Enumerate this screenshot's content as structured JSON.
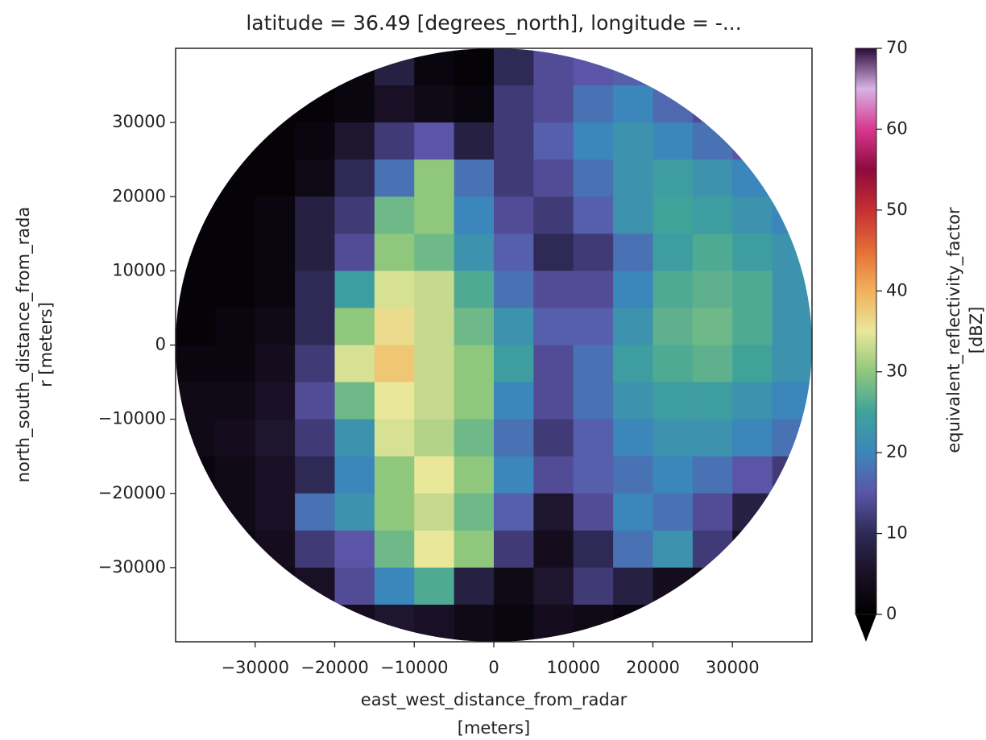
{
  "chart_data": {
    "type": "heatmap",
    "title": "latitude = 36.49 [degrees_north], longitude = -...",
    "xlabel": [
      "east_west_distance_from_radar",
      "[meters]"
    ],
    "ylabel": [
      "north_south_distance_from_rada",
      "r [meters]"
    ],
    "colorbar_label": [
      "equivalent_reflectivity_factor",
      "[dBZ]"
    ],
    "xlim": [
      -40000,
      40000
    ],
    "ylim": [
      -40000,
      40000
    ],
    "xticks": [
      {
        "value": -30000,
        "label": "−30000"
      },
      {
        "value": -20000,
        "label": "−20000"
      },
      {
        "value": -10000,
        "label": "−10000"
      },
      0,
      10000,
      20000,
      30000
    ],
    "yticks": [
      {
        "value": -30000,
        "label": "−30000"
      },
      {
        "value": -20000,
        "label": "−20000"
      },
      {
        "value": -10000,
        "label": "−10000"
      },
      0,
      10000,
      20000,
      30000
    ],
    "x_edges": [
      -40000,
      -35000,
      -30000,
      -25000,
      -20000,
      -15000,
      -10000,
      -5000,
      0,
      5000,
      10000,
      15000,
      20000,
      25000,
      30000,
      35000,
      40000
    ],
    "y_edges": [
      40000,
      35000,
      30000,
      25000,
      20000,
      15000,
      10000,
      5000,
      0,
      -5000,
      -10000,
      -15000,
      -20000,
      -25000,
      -30000,
      -35000,
      -40000
    ],
    "z": [
      [
        null,
        null,
        null,
        null,
        2,
        8,
        2,
        1,
        10,
        14,
        15,
        16,
        null,
        null,
        null,
        null
      ],
      [
        null,
        null,
        1,
        1,
        2,
        5,
        3,
        2,
        12,
        14,
        18,
        20,
        17,
        14,
        null,
        null
      ],
      [
        null,
        1,
        1,
        2,
        6,
        12,
        15,
        8,
        12,
        16,
        20,
        22,
        20,
        18,
        15,
        null
      ],
      [
        null,
        1,
        1,
        3,
        10,
        18,
        30,
        18,
        12,
        14,
        18,
        22,
        24,
        22,
        20,
        null
      ],
      [
        1,
        1,
        2,
        8,
        12,
        28,
        30,
        20,
        14,
        12,
        16,
        22,
        25,
        24,
        22,
        20
      ],
      [
        1,
        1,
        2,
        8,
        14,
        30,
        28,
        22,
        16,
        10,
        12,
        18,
        24,
        26,
        24,
        22
      ],
      [
        1,
        1,
        2,
        10,
        24,
        34,
        33,
        26,
        18,
        14,
        14,
        20,
        26,
        27,
        26,
        22
      ],
      [
        1,
        2,
        3,
        10,
        30,
        36,
        33,
        28,
        22,
        16,
        16,
        22,
        27,
        28,
        26,
        22
      ],
      [
        2,
        2,
        4,
        12,
        34,
        38,
        33,
        30,
        24,
        14,
        18,
        24,
        26,
        27,
        25,
        22
      ],
      [
        3,
        3,
        5,
        14,
        28,
        35,
        33,
        30,
        20,
        14,
        18,
        22,
        24,
        24,
        22,
        20
      ],
      [
        3,
        4,
        6,
        12,
        22,
        34,
        32,
        28,
        18,
        12,
        16,
        20,
        22,
        22,
        20,
        18
      ],
      [
        2,
        3,
        5,
        10,
        20,
        30,
        35,
        30,
        20,
        14,
        16,
        18,
        20,
        18,
        15,
        12
      ],
      [
        null,
        3,
        5,
        18,
        22,
        30,
        33,
        28,
        16,
        6,
        14,
        20,
        18,
        14,
        8,
        null
      ],
      [
        null,
        2,
        4,
        12,
        15,
        28,
        35,
        30,
        12,
        4,
        10,
        18,
        22,
        12,
        5,
        null
      ],
      [
        null,
        null,
        3,
        5,
        14,
        20,
        26,
        8,
        3,
        6,
        12,
        8,
        4,
        3,
        null,
        null
      ],
      [
        null,
        null,
        null,
        null,
        4,
        6,
        5,
        3,
        2,
        4,
        3,
        2,
        null,
        null,
        null,
        null
      ]
    ],
    "colorbar_lim": [
      0,
      70
    ],
    "colorbar_ticks": [
      0,
      10,
      20,
      30,
      40,
      50,
      60,
      70
    ],
    "colorbar_extend": "min",
    "colormap": [
      "#000000",
      "#1a1025",
      "#2e2a55",
      "#5b55a8",
      "#3b86bb",
      "#3fa39a",
      "#8fc77c",
      "#e9e79a",
      "#f3b05a",
      "#e46e37",
      "#c62f33",
      "#8e0a3c",
      "#d8388f",
      "#d7b2e6",
      "#2d0a3c"
    ]
  }
}
